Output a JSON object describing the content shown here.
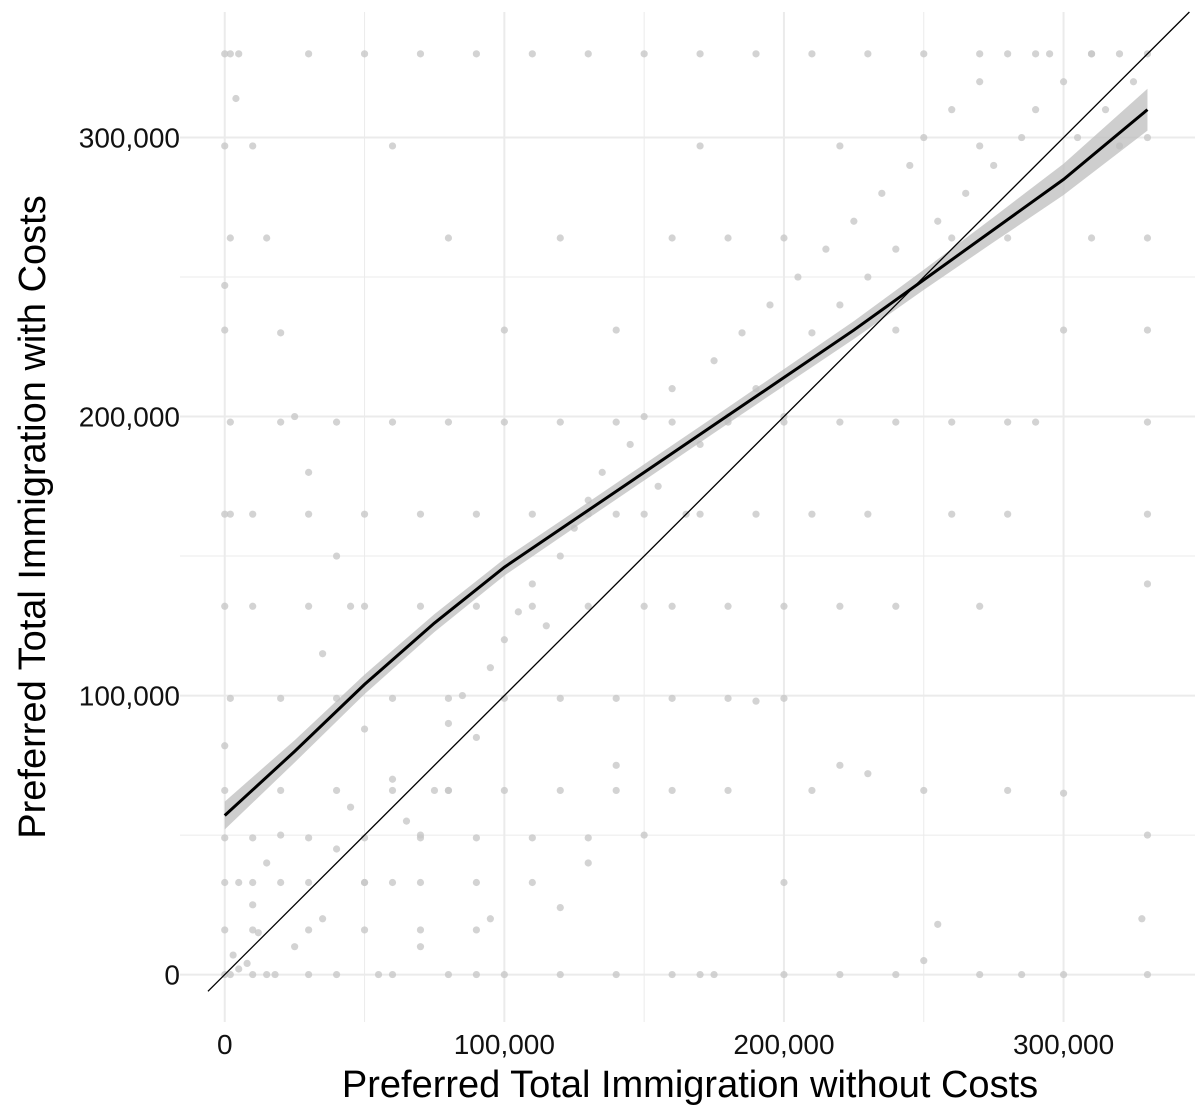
{
  "chart_data": {
    "type": "scatter",
    "title": "",
    "xlabel": "Preferred Total Immigration without Costs",
    "ylabel": "Preferred Total Immigration with Costs",
    "xlim": [
      -16000,
      347000
    ],
    "ylim": [
      -17000,
      345000
    ],
    "x_ticks": [
      {
        "value": 0,
        "label": "0"
      },
      {
        "value": 100000,
        "label": "100,000"
      },
      {
        "value": 200000,
        "label": "200,000"
      },
      {
        "value": 300000,
        "label": "300,000"
      }
    ],
    "y_ticks": [
      {
        "value": 0,
        "label": "0"
      },
      {
        "value": 100000,
        "label": "100,000"
      },
      {
        "value": 200000,
        "label": "200,000"
      },
      {
        "value": 300000,
        "label": "300,000"
      }
    ],
    "grid": true,
    "legend": "none",
    "colors": {
      "points": "#c8c8c8",
      "smooth_line": "#000000",
      "confidence_band": "#bdbdbd",
      "reference_line": "#000000",
      "grid": "#ebebeb"
    },
    "reference_line": {
      "type": "identity",
      "slope": 1,
      "intercept": 0
    },
    "smooth": {
      "x": [
        0,
        25000,
        50000,
        75000,
        100000,
        125000,
        150000,
        175000,
        200000,
        225000,
        250000,
        275000,
        300000,
        330000
      ],
      "y": [
        57000,
        80000,
        104000,
        126000,
        146000,
        163000,
        180000,
        197000,
        214000,
        231000,
        249000,
        267000,
        285000,
        310000
      ],
      "se": [
        5000,
        4000,
        3500,
        3200,
        3000,
        2900,
        2900,
        2900,
        3000,
        3200,
        3600,
        4500,
        5600,
        7500
      ]
    },
    "series": [
      {
        "points": [
          [
            0,
            330000
          ],
          [
            2000,
            330000
          ],
          [
            4000,
            314000
          ],
          [
            0,
            297000
          ],
          [
            2000,
            264000
          ],
          [
            0,
            247000
          ],
          [
            0,
            231000
          ],
          [
            2000,
            198000
          ],
          [
            0,
            165000
          ],
          [
            2000,
            165000
          ],
          [
            0,
            132000
          ],
          [
            2000,
            99000
          ],
          [
            0,
            82000
          ],
          [
            0,
            66000
          ],
          [
            0,
            49000
          ],
          [
            0,
            33000
          ],
          [
            0,
            16000
          ],
          [
            0,
            0
          ],
          [
            2000,
            0
          ],
          [
            5000,
            2000
          ],
          [
            3000,
            7000
          ],
          [
            8000,
            4000
          ],
          [
            10000,
            0
          ],
          [
            12000,
            15000
          ],
          [
            15000,
            0
          ],
          [
            18000,
            0
          ],
          [
            20000,
            33000
          ],
          [
            5000,
            33000
          ],
          [
            10000,
            25000
          ],
          [
            15000,
            40000
          ],
          [
            20000,
            50000
          ],
          [
            25000,
            10000
          ],
          [
            30000,
            0
          ],
          [
            35000,
            20000
          ],
          [
            40000,
            45000
          ],
          [
            45000,
            60000
          ],
          [
            50000,
            33000
          ],
          [
            55000,
            0
          ],
          [
            60000,
            70000
          ],
          [
            65000,
            55000
          ],
          [
            70000,
            50000
          ],
          [
            75000,
            66000
          ],
          [
            80000,
            90000
          ],
          [
            85000,
            100000
          ],
          [
            90000,
            85000
          ],
          [
            95000,
            110000
          ],
          [
            100000,
            120000
          ],
          [
            105000,
            130000
          ],
          [
            110000,
            140000
          ],
          [
            115000,
            125000
          ],
          [
            120000,
            150000
          ],
          [
            125000,
            160000
          ],
          [
            130000,
            170000
          ],
          [
            135000,
            180000
          ],
          [
            140000,
            165000
          ],
          [
            145000,
            190000
          ],
          [
            150000,
            200000
          ],
          [
            155000,
            175000
          ],
          [
            160000,
            210000
          ],
          [
            165000,
            165000
          ],
          [
            170000,
            190000
          ],
          [
            175000,
            220000
          ],
          [
            180000,
            200000
          ],
          [
            185000,
            230000
          ],
          [
            190000,
            210000
          ],
          [
            195000,
            240000
          ],
          [
            200000,
            200000
          ],
          [
            205000,
            250000
          ],
          [
            210000,
            230000
          ],
          [
            215000,
            260000
          ],
          [
            220000,
            240000
          ],
          [
            225000,
            270000
          ],
          [
            230000,
            250000
          ],
          [
            235000,
            280000
          ],
          [
            240000,
            260000
          ],
          [
            245000,
            290000
          ],
          [
            250000,
            300000
          ],
          [
            255000,
            270000
          ],
          [
            260000,
            310000
          ],
          [
            265000,
            280000
          ],
          [
            270000,
            320000
          ],
          [
            275000,
            290000
          ],
          [
            280000,
            330000
          ],
          [
            285000,
            300000
          ],
          [
            290000,
            310000
          ],
          [
            295000,
            330000
          ],
          [
            300000,
            320000
          ],
          [
            305000,
            300000
          ],
          [
            310000,
            330000
          ],
          [
            315000,
            310000
          ],
          [
            320000,
            330000
          ],
          [
            325000,
            320000
          ],
          [
            330000,
            330000
          ],
          [
            330000,
            300000
          ],
          [
            330000,
            264000
          ],
          [
            330000,
            231000
          ],
          [
            330000,
            198000
          ],
          [
            330000,
            165000
          ],
          [
            330000,
            140000
          ],
          [
            330000,
            50000
          ],
          [
            330000,
            0
          ],
          [
            328000,
            20000
          ],
          [
            300000,
            65000
          ],
          [
            285000,
            0
          ],
          [
            280000,
            66000
          ],
          [
            250000,
            5000
          ],
          [
            255000,
            18000
          ],
          [
            230000,
            72000
          ],
          [
            220000,
            75000
          ],
          [
            190000,
            98000
          ],
          [
            200000,
            33000
          ],
          [
            175000,
            0
          ],
          [
            170000,
            0
          ],
          [
            150000,
            50000
          ],
          [
            140000,
            75000
          ],
          [
            130000,
            40000
          ],
          [
            120000,
            24000
          ],
          [
            100000,
            0
          ],
          [
            95000,
            20000
          ],
          [
            90000,
            0
          ],
          [
            80000,
            66000
          ],
          [
            70000,
            10000
          ],
          [
            60000,
            33000
          ],
          [
            50000,
            88000
          ],
          [
            45000,
            132000
          ],
          [
            40000,
            150000
          ],
          [
            35000,
            115000
          ],
          [
            30000,
            180000
          ],
          [
            25000,
            200000
          ],
          [
            20000,
            230000
          ],
          [
            15000,
            264000
          ],
          [
            10000,
            297000
          ],
          [
            5000,
            330000
          ],
          [
            30000,
            330000
          ],
          [
            50000,
            330000
          ],
          [
            70000,
            330000
          ],
          [
            90000,
            330000
          ],
          [
            110000,
            330000
          ],
          [
            130000,
            330000
          ],
          [
            150000,
            330000
          ],
          [
            170000,
            330000
          ],
          [
            190000,
            330000
          ],
          [
            210000,
            330000
          ],
          [
            230000,
            330000
          ],
          [
            250000,
            330000
          ],
          [
            270000,
            330000
          ],
          [
            290000,
            330000
          ],
          [
            310000,
            330000
          ],
          [
            60000,
            297000
          ],
          [
            80000,
            264000
          ],
          [
            100000,
            231000
          ],
          [
            120000,
            264000
          ],
          [
            140000,
            231000
          ],
          [
            160000,
            264000
          ],
          [
            170000,
            297000
          ],
          [
            180000,
            264000
          ],
          [
            200000,
            264000
          ],
          [
            220000,
            297000
          ],
          [
            240000,
            231000
          ],
          [
            260000,
            264000
          ],
          [
            270000,
            297000
          ],
          [
            280000,
            264000
          ],
          [
            320000,
            297000
          ],
          [
            310000,
            264000
          ],
          [
            300000,
            231000
          ],
          [
            290000,
            198000
          ],
          [
            280000,
            165000
          ],
          [
            270000,
            132000
          ],
          [
            260000,
            165000
          ],
          [
            240000,
            132000
          ],
          [
            230000,
            165000
          ],
          [
            220000,
            132000
          ],
          [
            210000,
            165000
          ],
          [
            200000,
            132000
          ],
          [
            190000,
            165000
          ],
          [
            180000,
            132000
          ],
          [
            160000,
            132000
          ],
          [
            150000,
            132000
          ],
          [
            130000,
            132000
          ],
          [
            110000,
            132000
          ],
          [
            90000,
            132000
          ],
          [
            70000,
            132000
          ],
          [
            50000,
            132000
          ],
          [
            30000,
            132000
          ],
          [
            10000,
            132000
          ],
          [
            10000,
            165000
          ],
          [
            30000,
            165000
          ],
          [
            50000,
            165000
          ],
          [
            70000,
            165000
          ],
          [
            90000,
            165000
          ],
          [
            110000,
            165000
          ],
          [
            130000,
            165000
          ],
          [
            150000,
            165000
          ],
          [
            170000,
            165000
          ],
          [
            20000,
            198000
          ],
          [
            40000,
            198000
          ],
          [
            60000,
            198000
          ],
          [
            80000,
            198000
          ],
          [
            100000,
            198000
          ],
          [
            120000,
            198000
          ],
          [
            140000,
            198000
          ],
          [
            160000,
            198000
          ],
          [
            180000,
            198000
          ],
          [
            200000,
            198000
          ],
          [
            220000,
            198000
          ],
          [
            240000,
            198000
          ],
          [
            260000,
            198000
          ],
          [
            280000,
            198000
          ],
          [
            20000,
            99000
          ],
          [
            40000,
            99000
          ],
          [
            60000,
            99000
          ],
          [
            80000,
            99000
          ],
          [
            100000,
            99000
          ],
          [
            120000,
            99000
          ],
          [
            140000,
            99000
          ],
          [
            160000,
            99000
          ],
          [
            180000,
            99000
          ],
          [
            200000,
            99000
          ],
          [
            20000,
            66000
          ],
          [
            40000,
            66000
          ],
          [
            60000,
            66000
          ],
          [
            80000,
            66000
          ],
          [
            100000,
            66000
          ],
          [
            120000,
            66000
          ],
          [
            140000,
            66000
          ],
          [
            160000,
            66000
          ],
          [
            180000,
            66000
          ],
          [
            210000,
            66000
          ],
          [
            250000,
            66000
          ],
          [
            10000,
            49000
          ],
          [
            30000,
            49000
          ],
          [
            50000,
            49000
          ],
          [
            70000,
            49000
          ],
          [
            90000,
            49000
          ],
          [
            110000,
            49000
          ],
          [
            130000,
            49000
          ],
          [
            10000,
            33000
          ],
          [
            30000,
            33000
          ],
          [
            50000,
            33000
          ],
          [
            70000,
            33000
          ],
          [
            90000,
            33000
          ],
          [
            110000,
            33000
          ],
          [
            10000,
            16000
          ],
          [
            30000,
            16000
          ],
          [
            50000,
            16000
          ],
          [
            70000,
            16000
          ],
          [
            90000,
            16000
          ],
          [
            40000,
            0
          ],
          [
            60000,
            0
          ],
          [
            80000,
            0
          ],
          [
            120000,
            0
          ],
          [
            140000,
            0
          ],
          [
            160000,
            0
          ],
          [
            200000,
            0
          ],
          [
            220000,
            0
          ],
          [
            240000,
            0
          ],
          [
            270000,
            0
          ],
          [
            300000,
            0
          ]
        ]
      }
    ]
  }
}
